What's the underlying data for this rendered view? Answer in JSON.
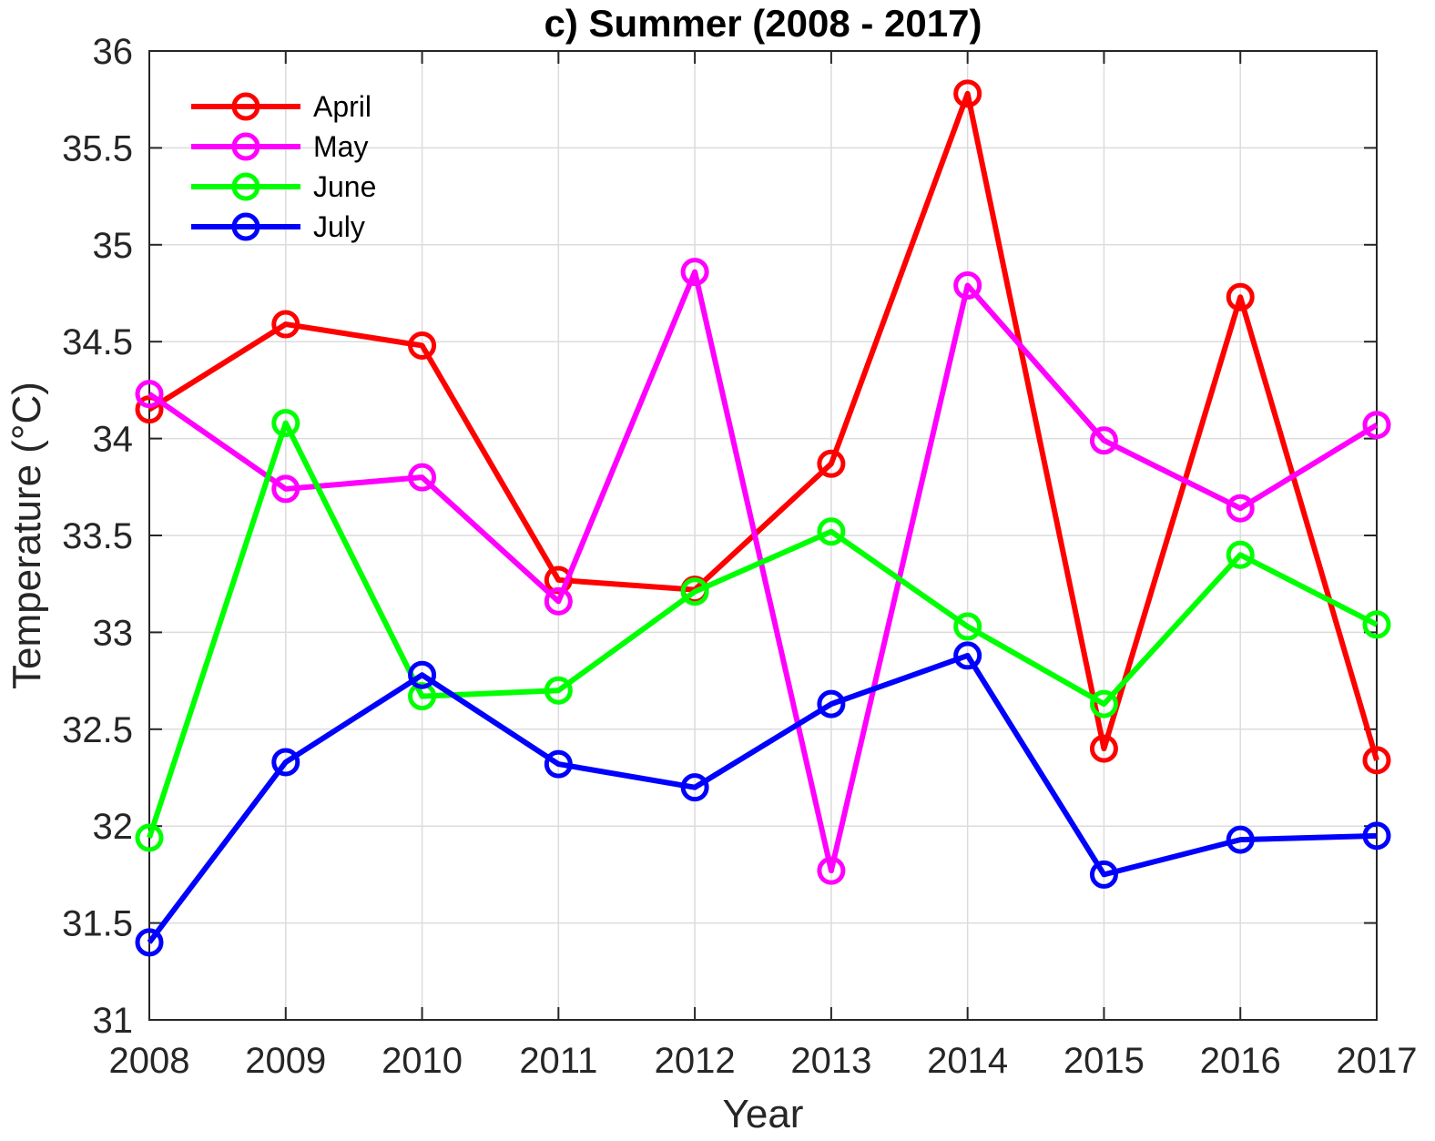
{
  "chart_data": {
    "type": "line",
    "title": "c) Summer (2008 - 2017)",
    "xlabel": "Year",
    "ylabel": "Temperature (°C)",
    "x": [
      2008,
      2009,
      2010,
      2011,
      2012,
      2013,
      2014,
      2015,
      2016,
      2017
    ],
    "xlim": [
      2008,
      2017
    ],
    "ylim": [
      31,
      36
    ],
    "yticks": [
      31,
      31.5,
      32,
      32.5,
      33,
      33.5,
      34,
      34.5,
      35,
      35.5,
      36
    ],
    "ytick_labels": [
      "31",
      "31.5",
      "32",
      "32.5",
      "33",
      "33.5",
      "34",
      "34.5",
      "35",
      "35.5",
      "36"
    ],
    "xtick_labels": [
      "2008",
      "2009",
      "2010",
      "2011",
      "2012",
      "2013",
      "2014",
      "2015",
      "2016",
      "2017"
    ],
    "grid": true,
    "legend_position": "top-left",
    "series": [
      {
        "name": "April",
        "color": "#ff0000",
        "values": [
          34.15,
          34.59,
          34.48,
          33.27,
          33.22,
          33.87,
          35.78,
          32.4,
          34.73,
          32.34
        ]
      },
      {
        "name": "May",
        "color": "#ff00ff",
        "values": [
          34.23,
          33.74,
          33.8,
          33.16,
          34.86,
          31.77,
          34.79,
          33.99,
          33.64,
          34.07
        ]
      },
      {
        "name": "June",
        "color": "#00ff00",
        "values": [
          31.94,
          34.08,
          32.67,
          32.7,
          33.21,
          33.52,
          33.03,
          32.63,
          33.4,
          33.04
        ]
      },
      {
        "name": "July",
        "color": "#0000ff",
        "values": [
          31.4,
          32.33,
          32.78,
          32.32,
          32.2,
          32.63,
          32.88,
          31.75,
          31.93,
          31.95
        ]
      }
    ]
  }
}
